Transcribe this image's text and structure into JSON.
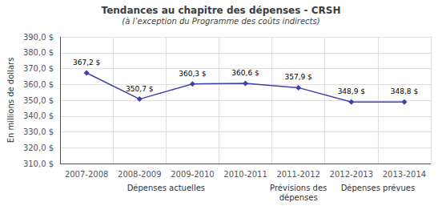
{
  "chart_data": {
    "type": "line",
    "title": "Tendances au chapitre des dépenses - CRSH",
    "subtitle": "(à l’exception du Programme des coûts indirects)",
    "ylabel": "En millions de dollars",
    "categories": [
      "2007-2008",
      "2008-2009",
      "2009-2010",
      "2010-2011",
      "2011-2012",
      "2012-2013",
      "2013-2014"
    ],
    "values": [
      367.2,
      350.7,
      360.3,
      360.6,
      357.9,
      348.9,
      348.8
    ],
    "value_labels": [
      "367,2 $",
      "350,7 $",
      "360,3 $",
      "360,6 $",
      "357,9 $",
      "348,9 $",
      "348,8 $"
    ],
    "data_labels": true,
    "color": "#4040aa",
    "marker": "diamond",
    "ylim": [
      310.0,
      390.0
    ],
    "yticks": [
      {
        "value": 310,
        "label": "310,0 $"
      },
      {
        "value": 320,
        "label": "320,0 $"
      },
      {
        "value": 330,
        "label": "330,0 $"
      },
      {
        "value": 340,
        "label": "340,0 $"
      },
      {
        "value": 350,
        "label": "350,0 $"
      },
      {
        "value": 360,
        "label": "360,0 $"
      },
      {
        "value": 370,
        "label": "370,0 $"
      },
      {
        "value": 380,
        "label": "380,0 $"
      },
      {
        "value": 390,
        "label": "390,0 $"
      }
    ],
    "grid": true,
    "annotations": [
      {
        "text": "Dépenses actuelles",
        "span": [
          "2007-2008",
          "2010-2011"
        ]
      },
      {
        "text": "Prévisions des\ndépenses",
        "span": [
          "2011-2012",
          "2011-2012"
        ]
      },
      {
        "text": "Dépenses prévues",
        "span": [
          "2012-2013",
          "2013-2014"
        ]
      }
    ]
  }
}
